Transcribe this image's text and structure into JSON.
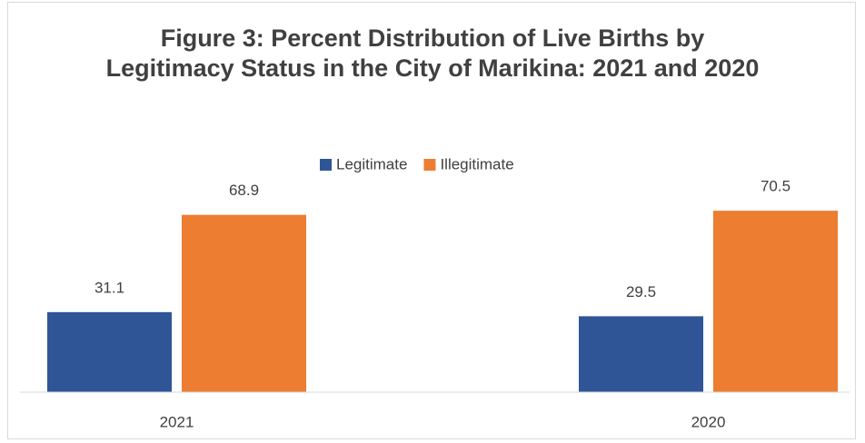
{
  "chart_data": {
    "type": "bar",
    "title": "Figure 3: Percent Distribution of Live Births by Legitimacy Status in the City of Marikina: 2021 and 2020",
    "categories": [
      "2021",
      "2020"
    ],
    "series": [
      {
        "name": "Legitimate",
        "color": "#2f5597",
        "values": [
          31.1,
          29.5
        ]
      },
      {
        "name": "Illegitimate",
        "color": "#ed7d31",
        "values": [
          68.9,
          70.5
        ]
      }
    ],
    "legend": "top"
  }
}
